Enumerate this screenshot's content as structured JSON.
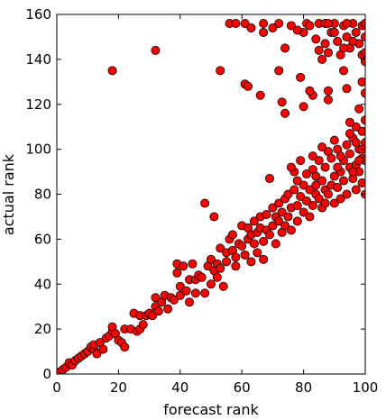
{
  "chart_data": {
    "type": "scatter",
    "xlabel": "forecast rank",
    "ylabel": "actual rank",
    "color": "#ff0000",
    "edgecolor": "#000000",
    "xlim": [
      0,
      100
    ],
    "ylim": [
      0,
      160
    ],
    "xticks": [
      0,
      20,
      40,
      60,
      80,
      100
    ],
    "yticks": [
      0,
      20,
      40,
      60,
      80,
      100,
      120,
      140,
      160
    ],
    "x": [
      0,
      1,
      2,
      3,
      4,
      5,
      6,
      7,
      8,
      9,
      10,
      11,
      12,
      12,
      13,
      14,
      15,
      16,
      17,
      18,
      18,
      19,
      20,
      21,
      22,
      22,
      24,
      25,
      26,
      27,
      27,
      28,
      29,
      30,
      31,
      32,
      32,
      33,
      34,
      35,
      36,
      37,
      38,
      39,
      39,
      40,
      40,
      41,
      42,
      43,
      43,
      44,
      45,
      45,
      46,
      47,
      48,
      48,
      49,
      50,
      50,
      51,
      51,
      52,
      52,
      53,
      53,
      54,
      55,
      55,
      56,
      57,
      57,
      58,
      58,
      59,
      60,
      60,
      61,
      62,
      62,
      63,
      63,
      64,
      64,
      65,
      65,
      66,
      66,
      67,
      67,
      68,
      68,
      69,
      69,
      70,
      70,
      71,
      71,
      72,
      72,
      73,
      73,
      74,
      74,
      75,
      75,
      76,
      76,
      77,
      77,
      78,
      78,
      79,
      79,
      80,
      80,
      81,
      81,
      82,
      82,
      83,
      83,
      84,
      84,
      85,
      85,
      86,
      86,
      87,
      87,
      88,
      88,
      89,
      89,
      90,
      90,
      91,
      91,
      92,
      92,
      93,
      93,
      94,
      94,
      95,
      95,
      96,
      96,
      97,
      97,
      98,
      98,
      99,
      99,
      100,
      100,
      100,
      99,
      97,
      95,
      100,
      98,
      100,
      99,
      93,
      94,
      88,
      88,
      83,
      82,
      80,
      74,
      73,
      66,
      61,
      62,
      53,
      18,
      32,
      72,
      79,
      74,
      80,
      81,
      84,
      85,
      86,
      87,
      88,
      89,
      90,
      91,
      92,
      93,
      94,
      95,
      96,
      97,
      98,
      99,
      100,
      100,
      56,
      58,
      61,
      63,
      67,
      67,
      70,
      72,
      76,
      78,
      82,
      85,
      87,
      90,
      93,
      96,
      99,
      100,
      88,
      100,
      94,
      76,
      78,
      83,
      86,
      90,
      92,
      95,
      97,
      99,
      84,
      87,
      91,
      96,
      98
    ],
    "y": [
      0,
      1,
      2,
      3,
      5,
      4,
      6,
      7,
      8,
      9,
      10,
      12,
      11,
      13,
      9,
      14,
      11,
      16,
      17,
      19,
      21,
      18,
      15,
      14,
      12,
      20,
      20,
      27,
      19,
      26,
      20,
      22,
      26,
      27,
      26,
      30,
      34,
      28,
      32,
      35,
      29,
      34,
      33,
      45,
      49,
      39,
      35,
      48,
      37,
      32,
      42,
      49,
      36,
      42,
      44,
      43,
      76,
      36,
      48,
      40,
      51,
      46,
      70,
      43,
      49,
      56,
      47,
      39,
      50,
      54,
      60,
      62,
      55,
      52,
      48,
      58,
      57,
      66,
      53,
      60,
      65,
      50,
      62,
      68,
      58,
      63,
      54,
      70,
      65,
      59,
      51,
      64,
      71,
      87,
      62,
      74,
      66,
      58,
      70,
      68,
      76,
      63,
      72,
      78,
      66,
      80,
      70,
      74,
      64,
      82,
      90,
      75,
      68,
      95,
      79,
      84,
      72,
      77,
      89,
      70,
      82,
      91,
      75,
      80,
      88,
      78,
      95,
      86,
      74,
      82,
      92,
      99,
      80,
      84,
      96,
      76,
      88,
      100,
      83,
      90,
      78,
      95,
      86,
      102,
      80,
      92,
      98,
      87,
      105,
      93,
      82,
      100,
      90,
      96,
      85,
      95,
      103,
      80,
      108,
      110,
      112,
      113,
      118,
      125,
      130,
      135,
      127,
      122,
      126,
      124,
      126,
      119,
      116,
      121,
      124,
      129,
      128,
      135,
      135,
      144,
      135,
      132,
      145,
      152,
      156,
      149,
      144,
      140,
      147,
      143,
      152,
      156,
      148,
      142,
      155,
      150,
      145,
      156,
      152,
      147,
      155,
      150,
      156,
      156,
      156,
      156,
      154,
      156,
      152,
      154,
      156,
      155,
      153,
      155,
      156,
      156,
      152,
      145,
      148,
      142,
      143,
      156,
      139,
      156,
      92,
      86,
      97,
      101,
      104,
      97,
      107,
      103,
      100,
      84,
      76,
      92,
      90,
      95
    ]
  }
}
